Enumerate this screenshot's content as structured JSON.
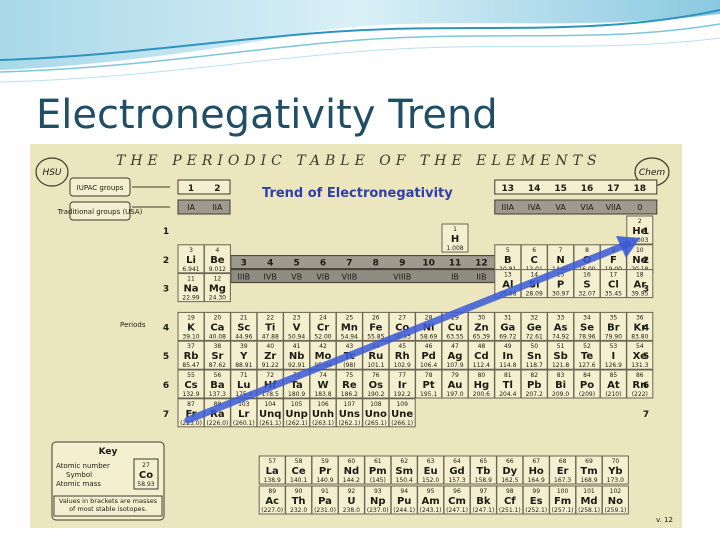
{
  "slide": {
    "title": "Electronegativity Trend"
  },
  "table": {
    "header": "THE PERIODIC TABLE OF THE ELEMENTS",
    "logo_left": "HSU",
    "logo_right": "Chem",
    "trend_title": "Trend of Electronegativity",
    "iupac_label": "IUPAC groups",
    "traditional_label": "Traditional groups (USA)",
    "iupac_left": [
      "1",
      "2"
    ],
    "traditional_left": [
      "IA",
      "IIA"
    ],
    "iupac_mid": [
      "3",
      "4",
      "5",
      "6",
      "7",
      "8",
      "9",
      "10",
      "11",
      "12"
    ],
    "traditional_mid": [
      "IIIB",
      "IVB",
      "VB",
      "VIB",
      "VIIB",
      "VIIIB",
      "IB",
      "IIB"
    ],
    "iupac_right": [
      "13",
      "14",
      "15",
      "16",
      "17",
      "18"
    ],
    "traditional_right": [
      "IIIA",
      "IVA",
      "VA",
      "VIA",
      "VIIA",
      "0"
    ],
    "periods_label": "Periods",
    "period_numbers": [
      "1",
      "2",
      "3",
      "4",
      "5",
      "6",
      "7"
    ],
    "key": {
      "title": "Key",
      "atomic_number_label": "Atomic number",
      "symbol_label": "Symbol",
      "atomic_mass_label": "Atomic mass",
      "sample_number": "27",
      "sample_symbol": "Co",
      "sample_mass": "58.93",
      "note": "Values in brackets are masses of most stable isotopes."
    },
    "page_number": "v. 12",
    "colors": {
      "arrow": "#3b5bd9",
      "paper": "#ece6bf",
      "cell": "#f4efcf",
      "band": "#8f8c82"
    },
    "main_elements": [
      {
        "n": "1",
        "s": "H",
        "m": "1.008",
        "p": 1,
        "g": 1
      },
      {
        "n": "2",
        "s": "He",
        "m": "4.003",
        "p": 1,
        "g": 18
      },
      {
        "n": "3",
        "s": "Li",
        "m": "6.941",
        "p": 2,
        "g": 1
      },
      {
        "n": "4",
        "s": "Be",
        "m": "9.012",
        "p": 2,
        "g": 2
      },
      {
        "n": "5",
        "s": "B",
        "m": "10.81",
        "p": 2,
        "g": 13
      },
      {
        "n": "6",
        "s": "C",
        "m": "12.01",
        "p": 2,
        "g": 14
      },
      {
        "n": "7",
        "s": "N",
        "m": "14.01",
        "p": 2,
        "g": 15
      },
      {
        "n": "8",
        "s": "O",
        "m": "16.00",
        "p": 2,
        "g": 16
      },
      {
        "n": "9",
        "s": "F",
        "m": "19.00",
        "p": 2,
        "g": 17
      },
      {
        "n": "10",
        "s": "Ne",
        "m": "20.18",
        "p": 2,
        "g": 18
      },
      {
        "n": "11",
        "s": "Na",
        "m": "22.99",
        "p": 3,
        "g": 1
      },
      {
        "n": "12",
        "s": "Mg",
        "m": "24.30",
        "p": 3,
        "g": 2
      },
      {
        "n": "13",
        "s": "Al",
        "m": "26.98",
        "p": 3,
        "g": 13
      },
      {
        "n": "14",
        "s": "Si",
        "m": "28.09",
        "p": 3,
        "g": 14
      },
      {
        "n": "15",
        "s": "P",
        "m": "30.97",
        "p": 3,
        "g": 15
      },
      {
        "n": "16",
        "s": "S",
        "m": "32.07",
        "p": 3,
        "g": 16
      },
      {
        "n": "17",
        "s": "Cl",
        "m": "35.45",
        "p": 3,
        "g": 17
      },
      {
        "n": "18",
        "s": "Ar",
        "m": "39.95",
        "p": 3,
        "g": 18
      },
      {
        "n": "19",
        "s": "K",
        "m": "39.10",
        "p": 4,
        "g": 1
      },
      {
        "n": "20",
        "s": "Ca",
        "m": "40.08",
        "p": 4,
        "g": 2
      },
      {
        "n": "21",
        "s": "Sc",
        "m": "44.96",
        "p": 4,
        "g": 3
      },
      {
        "n": "22",
        "s": "Ti",
        "m": "47.88",
        "p": 4,
        "g": 4
      },
      {
        "n": "23",
        "s": "V",
        "m": "50.94",
        "p": 4,
        "g": 5
      },
      {
        "n": "24",
        "s": "Cr",
        "m": "52.00",
        "p": 4,
        "g": 6
      },
      {
        "n": "25",
        "s": "Mn",
        "m": "54.94",
        "p": 4,
        "g": 7
      },
      {
        "n": "26",
        "s": "Fe",
        "m": "55.85",
        "p": 4,
        "g": 8
      },
      {
        "n": "27",
        "s": "Co",
        "m": "58.93",
        "p": 4,
        "g": 9
      },
      {
        "n": "28",
        "s": "Ni",
        "m": "58.69",
        "p": 4,
        "g": 10
      },
      {
        "n": "29",
        "s": "Cu",
        "m": "63.55",
        "p": 4,
        "g": 11
      },
      {
        "n": "30",
        "s": "Zn",
        "m": "65.39",
        "p": 4,
        "g": 12
      },
      {
        "n": "31",
        "s": "Ga",
        "m": "69.72",
        "p": 4,
        "g": 13
      },
      {
        "n": "32",
        "s": "Ge",
        "m": "72.61",
        "p": 4,
        "g": 14
      },
      {
        "n": "33",
        "s": "As",
        "m": "74.92",
        "p": 4,
        "g": 15
      },
      {
        "n": "34",
        "s": "Se",
        "m": "78.96",
        "p": 4,
        "g": 16
      },
      {
        "n": "35",
        "s": "Br",
        "m": "79.90",
        "p": 4,
        "g": 17
      },
      {
        "n": "36",
        "s": "Kr",
        "m": "83.80",
        "p": 4,
        "g": 18
      },
      {
        "n": "37",
        "s": "Rb",
        "m": "85.47",
        "p": 5,
        "g": 1
      },
      {
        "n": "38",
        "s": "Sr",
        "m": "87.62",
        "p": 5,
        "g": 2
      },
      {
        "n": "39",
        "s": "Y",
        "m": "88.91",
        "p": 5,
        "g": 3
      },
      {
        "n": "40",
        "s": "Zr",
        "m": "91.22",
        "p": 5,
        "g": 4
      },
      {
        "n": "41",
        "s": "Nb",
        "m": "92.91",
        "p": 5,
        "g": 5
      },
      {
        "n": "42",
        "s": "Mo",
        "m": "95.94",
        "p": 5,
        "g": 6
      },
      {
        "n": "43",
        "s": "Tc",
        "m": "(98)",
        "p": 5,
        "g": 7
      },
      {
        "n": "44",
        "s": "Ru",
        "m": "101.1",
        "p": 5,
        "g": 8
      },
      {
        "n": "45",
        "s": "Rh",
        "m": "102.9",
        "p": 5,
        "g": 9
      },
      {
        "n": "46",
        "s": "Pd",
        "m": "106.4",
        "p": 5,
        "g": 10
      },
      {
        "n": "47",
        "s": "Ag",
        "m": "107.9",
        "p": 5,
        "g": 11
      },
      {
        "n": "48",
        "s": "Cd",
        "m": "112.4",
        "p": 5,
        "g": 12
      },
      {
        "n": "49",
        "s": "In",
        "m": "114.8",
        "p": 5,
        "g": 13
      },
      {
        "n": "50",
        "s": "Sn",
        "m": "118.7",
        "p": 5,
        "g": 14
      },
      {
        "n": "51",
        "s": "Sb",
        "m": "121.8",
        "p": 5,
        "g": 15
      },
      {
        "n": "52",
        "s": "Te",
        "m": "127.6",
        "p": 5,
        "g": 16
      },
      {
        "n": "53",
        "s": "I",
        "m": "126.9",
        "p": 5,
        "g": 17
      },
      {
        "n": "54",
        "s": "Xe",
        "m": "131.3",
        "p": 5,
        "g": 18
      },
      {
        "n": "55",
        "s": "Cs",
        "m": "132.9",
        "p": 6,
        "g": 1
      },
      {
        "n": "56",
        "s": "Ba",
        "m": "137.3",
        "p": 6,
        "g": 2
      },
      {
        "n": "71",
        "s": "Lu",
        "m": "175.0",
        "p": 6,
        "g": 3
      },
      {
        "n": "72",
        "s": "Hf",
        "m": "178.5",
        "p": 6,
        "g": 4
      },
      {
        "n": "73",
        "s": "Ta",
        "m": "180.9",
        "p": 6,
        "g": 5
      },
      {
        "n": "74",
        "s": "W",
        "m": "183.8",
        "p": 6,
        "g": 6
      },
      {
        "n": "75",
        "s": "Re",
        "m": "186.2",
        "p": 6,
        "g": 7
      },
      {
        "n": "76",
        "s": "Os",
        "m": "190.2",
        "p": 6,
        "g": 8
      },
      {
        "n": "77",
        "s": "Ir",
        "m": "192.2",
        "p": 6,
        "g": 9
      },
      {
        "n": "78",
        "s": "Pt",
        "m": "195.1",
        "p": 6,
        "g": 10
      },
      {
        "n": "79",
        "s": "Au",
        "m": "197.0",
        "p": 6,
        "g": 11
      },
      {
        "n": "80",
        "s": "Hg",
        "m": "200.6",
        "p": 6,
        "g": 12
      },
      {
        "n": "81",
        "s": "Tl",
        "m": "204.4",
        "p": 6,
        "g": 13
      },
      {
        "n": "82",
        "s": "Pb",
        "m": "207.2",
        "p": 6,
        "g": 14
      },
      {
        "n": "83",
        "s": "Bi",
        "m": "209.0",
        "p": 6,
        "g": 15
      },
      {
        "n": "84",
        "s": "Po",
        "m": "(209)",
        "p": 6,
        "g": 16
      },
      {
        "n": "85",
        "s": "At",
        "m": "(210)",
        "p": 6,
        "g": 17
      },
      {
        "n": "86",
        "s": "Rn",
        "m": "(222)",
        "p": 6,
        "g": 18
      },
      {
        "n": "87",
        "s": "Fr",
        "m": "(223.0)",
        "p": 7,
        "g": 1
      },
      {
        "n": "88",
        "s": "Ra",
        "m": "(226.0)",
        "p": 7,
        "g": 2
      },
      {
        "n": "103",
        "s": "Lr",
        "m": "(260.1)",
        "p": 7,
        "g": 3
      },
      {
        "n": "104",
        "s": "Unq",
        "m": "(261.1)",
        "p": 7,
        "g": 4
      },
      {
        "n": "105",
        "s": "Unp",
        "m": "(262.1)",
        "p": 7,
        "g": 5
      },
      {
        "n": "106",
        "s": "Unh",
        "m": "(263.1)",
        "p": 7,
        "g": 6
      },
      {
        "n": "107",
        "s": "Uns",
        "m": "(262.1)",
        "p": 7,
        "g": 7
      },
      {
        "n": "108",
        "s": "Uno",
        "m": "(265.1)",
        "p": 7,
        "g": 8
      },
      {
        "n": "109",
        "s": "Une",
        "m": "(266.1)",
        "p": 7,
        "g": 9
      }
    ],
    "lanthanides": [
      {
        "n": "57",
        "s": "La",
        "m": "138.9"
      },
      {
        "n": "58",
        "s": "Ce",
        "m": "140.1"
      },
      {
        "n": "59",
        "s": "Pr",
        "m": "140.9"
      },
      {
        "n": "60",
        "s": "Nd",
        "m": "144.2"
      },
      {
        "n": "61",
        "s": "Pm",
        "m": "(145)"
      },
      {
        "n": "62",
        "s": "Sm",
        "m": "150.4"
      },
      {
        "n": "63",
        "s": "Eu",
        "m": "152.0"
      },
      {
        "n": "64",
        "s": "Gd",
        "m": "157.3"
      },
      {
        "n": "65",
        "s": "Tb",
        "m": "158.9"
      },
      {
        "n": "66",
        "s": "Dy",
        "m": "162.5"
      },
      {
        "n": "67",
        "s": "Ho",
        "m": "164.9"
      },
      {
        "n": "68",
        "s": "Er",
        "m": "167.3"
      },
      {
        "n": "69",
        "s": "Tm",
        "m": "168.9"
      },
      {
        "n": "70",
        "s": "Yb",
        "m": "173.0"
      }
    ],
    "actinides": [
      {
        "n": "89",
        "s": "Ac",
        "m": "(227.0)"
      },
      {
        "n": "90",
        "s": "Th",
        "m": "232.0"
      },
      {
        "n": "91",
        "s": "Pa",
        "m": "(231.0)"
      },
      {
        "n": "92",
        "s": "U",
        "m": "238.0"
      },
      {
        "n": "93",
        "s": "Np",
        "m": "(237.0)"
      },
      {
        "n": "94",
        "s": "Pu",
        "m": "(244.1)"
      },
      {
        "n": "95",
        "s": "Am",
        "m": "(243.1)"
      },
      {
        "n": "96",
        "s": "Cm",
        "m": "(247.1)"
      },
      {
        "n": "97",
        "s": "Bk",
        "m": "(247.1)"
      },
      {
        "n": "98",
        "s": "Cf",
        "m": "(251.1)"
      },
      {
        "n": "99",
        "s": "Es",
        "m": "(252.1)"
      },
      {
        "n": "100",
        "s": "Fm",
        "m": "(257.1)"
      },
      {
        "n": "101",
        "s": "Md",
        "m": "(258.1)"
      },
      {
        "n": "102",
        "s": "No",
        "m": "(259.1)"
      }
    ]
  }
}
